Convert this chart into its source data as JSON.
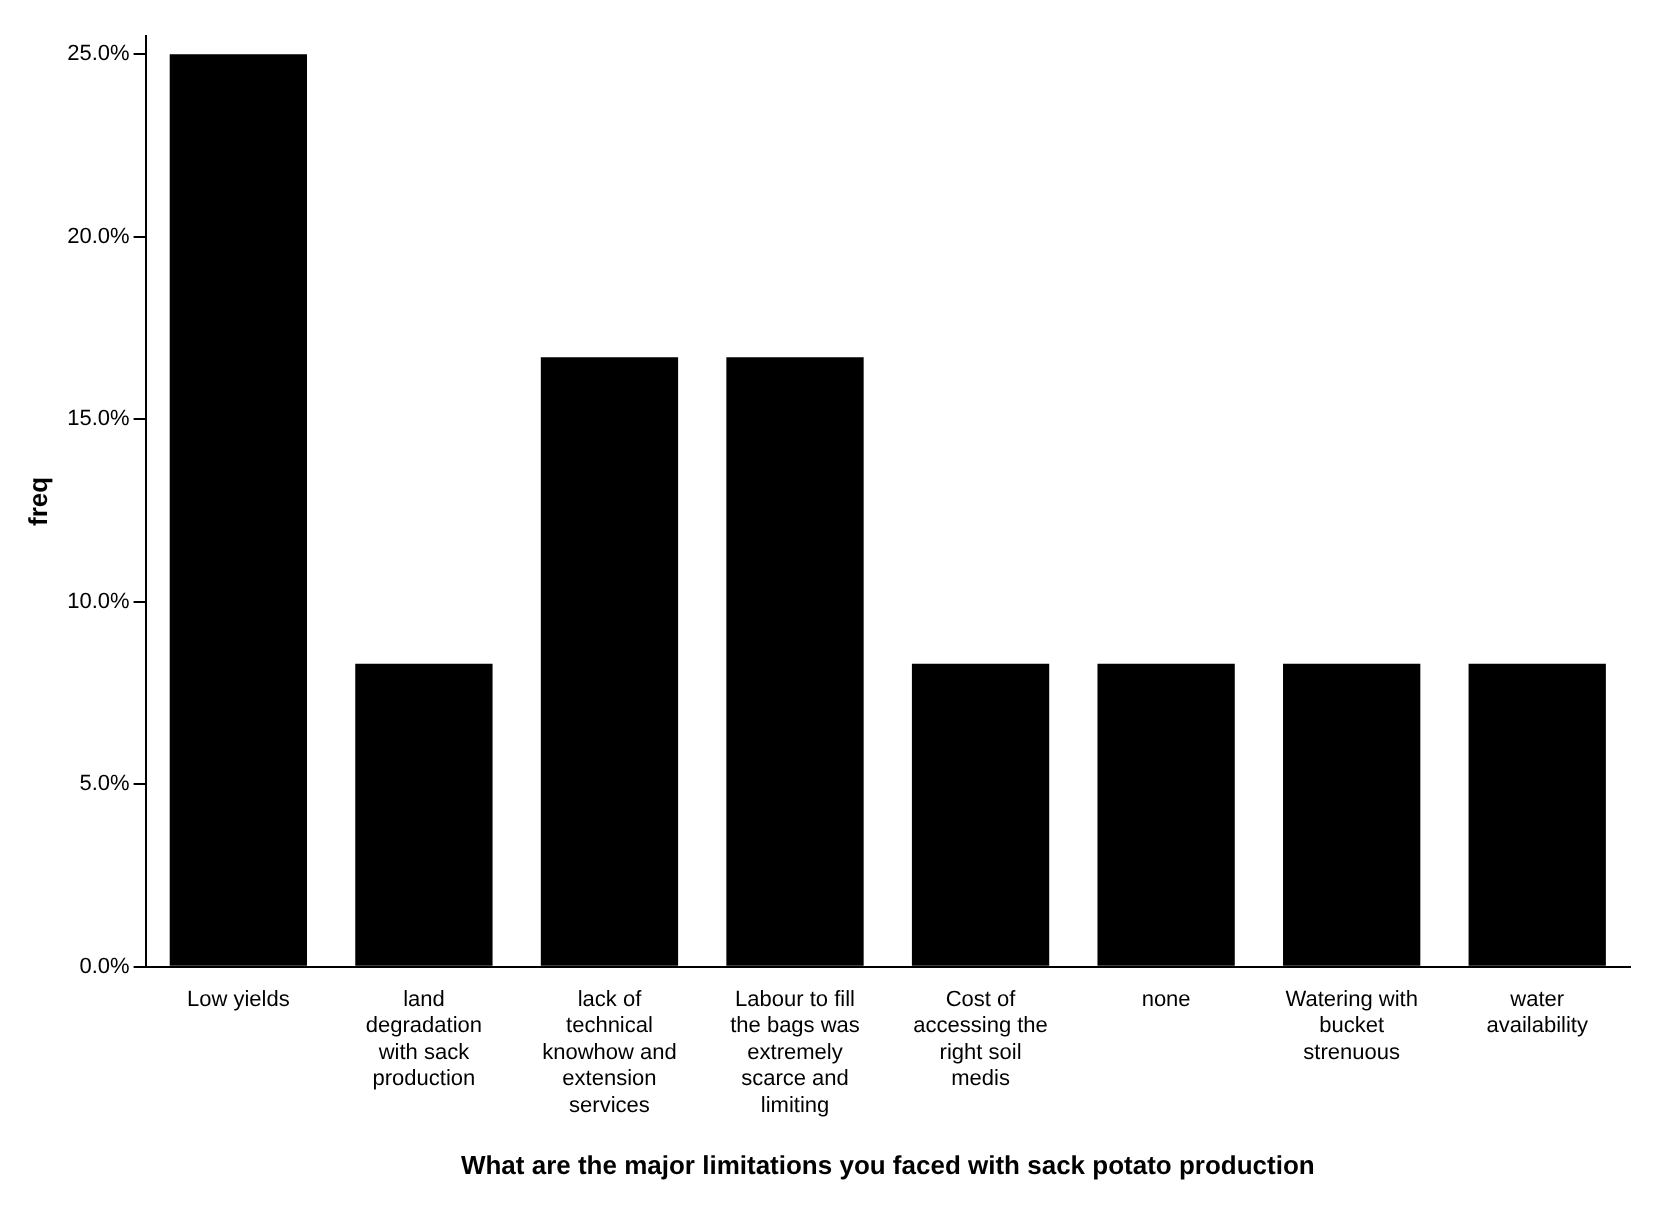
{
  "chart_data": {
    "type": "bar",
    "xlabel": "What are the major limitations you faced with sack potato production",
    "ylabel": "freq",
    "categories": [
      "Low yields",
      "land degradation with sack production",
      "lack of technical knowhow and extension services",
      "Labour to fill the bags was extremely scarce and limiting",
      "Cost of accessing the right soil medis",
      "none",
      "Watering with bucket strenuous",
      "water availability"
    ],
    "values": [
      25.0,
      8.3,
      16.7,
      16.7,
      8.3,
      8.3,
      8.3,
      8.3
    ],
    "color": "#000000",
    "ylim": [
      0,
      25.5
    ],
    "yticks": [
      {
        "value": 0,
        "label": "0.0%"
      },
      {
        "value": 5,
        "label": "5.0%"
      },
      {
        "value": 10,
        "label": "10.0%"
      },
      {
        "value": 15,
        "label": "15.0%"
      },
      {
        "value": 20,
        "label": "20.0%"
      },
      {
        "value": 25,
        "label": "25.0%"
      }
    ],
    "grid": false,
    "legend": false
  }
}
